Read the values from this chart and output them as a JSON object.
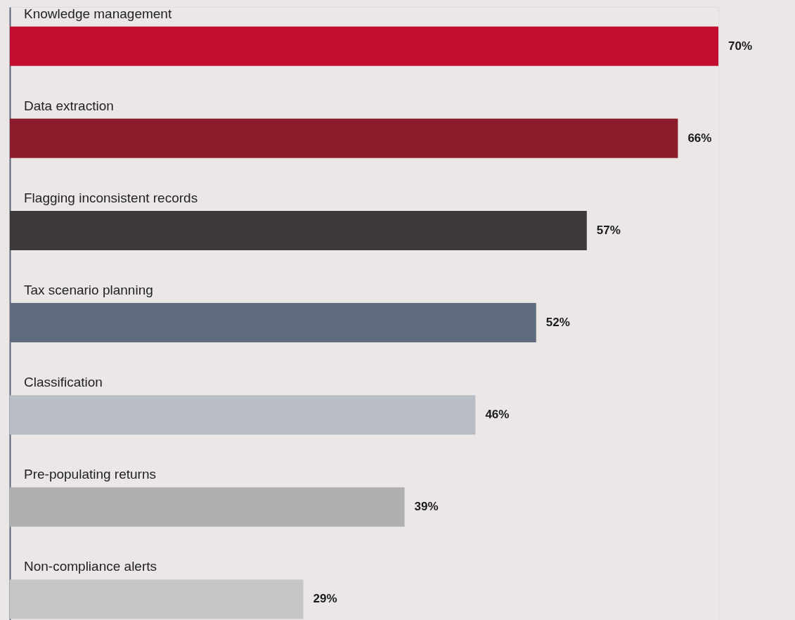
{
  "chart_data": {
    "type": "bar",
    "orientation": "horizontal",
    "categories": [
      "Knowledge management",
      "Data extraction",
      "Flagging inconsistent records",
      "Tax scenario planning",
      "Classification",
      "Pre-populating returns",
      "Non-compliance alerts"
    ],
    "values": [
      70,
      66,
      57,
      52,
      46,
      39,
      29
    ],
    "colors": [
      "#c20e2f",
      "#8a1c2b",
      "#3d3939",
      "#5f6b7e",
      "#b9bdc6",
      "#b0b0b0",
      "#c6c6c6"
    ],
    "value_labels": [
      "70%",
      "66%",
      "57%",
      "52%",
      "46%",
      "39%",
      "29%"
    ],
    "grid": false
  }
}
